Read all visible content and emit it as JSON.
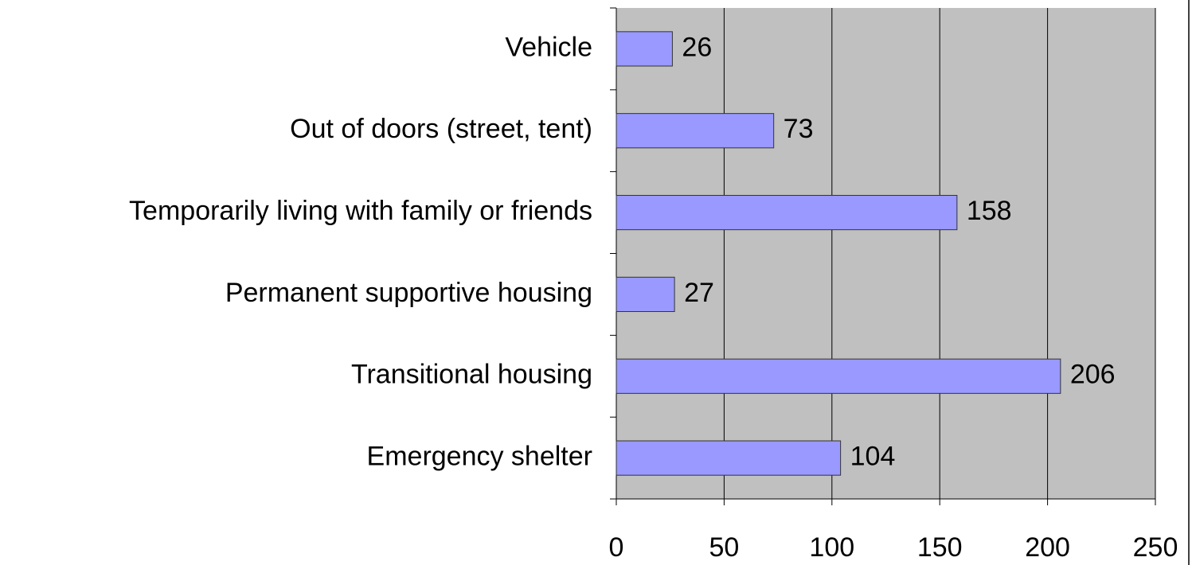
{
  "chart_data": {
    "type": "bar",
    "orientation": "horizontal",
    "categories": [
      "Vehicle",
      "Out of doors (street, tent)",
      "Temporarily living with family or friends",
      "Permanent supportive housing",
      "Transitional housing",
      "Emergency shelter"
    ],
    "values": [
      26,
      73,
      158,
      27,
      206,
      104
    ],
    "color": "#9999ff",
    "xlim": [
      0,
      250
    ],
    "xticks": [
      0,
      50,
      100,
      150,
      200,
      250
    ],
    "grid": true
  }
}
